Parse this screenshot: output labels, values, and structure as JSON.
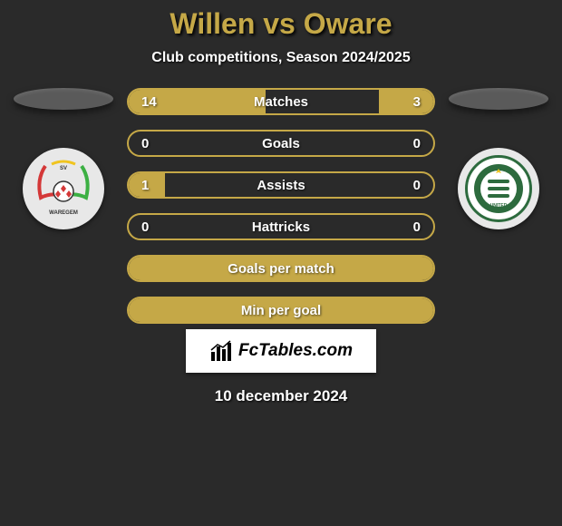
{
  "title": "Willen vs Oware",
  "subtitle": "Club competitions, Season 2024/2025",
  "date": "10 december 2024",
  "brand": "FcTables.com",
  "colors": {
    "accent": "#c5a847",
    "background": "#2a2a2a",
    "text": "#ffffff",
    "shadow_ellipse": "#5a5a5a",
    "logo_bg": "#e8e8e8",
    "brand_bg": "#ffffff",
    "brand_text": "#000000",
    "logo_right_primary": "#2d6b3e",
    "logo_left_red": "#d43838",
    "logo_left_green": "#3cb043",
    "logo_left_yellow": "#f0c420"
  },
  "bars": [
    {
      "label": "Matches",
      "left_value": "14",
      "right_value": "3",
      "left_fill_pct": 45,
      "right_fill_pct": 18,
      "full_fill": false
    },
    {
      "label": "Goals",
      "left_value": "0",
      "right_value": "0",
      "left_fill_pct": 0,
      "right_fill_pct": 0,
      "full_fill": false
    },
    {
      "label": "Assists",
      "left_value": "1",
      "right_value": "0",
      "left_fill_pct": 12,
      "right_fill_pct": 0,
      "full_fill": false
    },
    {
      "label": "Hattricks",
      "left_value": "0",
      "right_value": "0",
      "left_fill_pct": 0,
      "right_fill_pct": 0,
      "full_fill": false
    },
    {
      "label": "Goals per match",
      "left_value": "",
      "right_value": "",
      "left_fill_pct": 0,
      "right_fill_pct": 0,
      "full_fill": true
    },
    {
      "label": "Min per goal",
      "left_value": "",
      "right_value": "",
      "left_fill_pct": 0,
      "right_fill_pct": 0,
      "full_fill": true
    }
  ]
}
